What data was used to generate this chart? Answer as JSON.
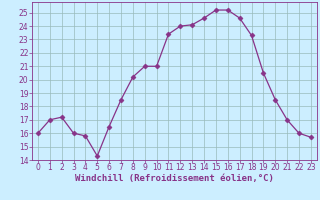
{
  "x": [
    0,
    1,
    2,
    3,
    4,
    5,
    6,
    7,
    8,
    9,
    10,
    11,
    12,
    13,
    14,
    15,
    16,
    17,
    18,
    19,
    20,
    21,
    22,
    23
  ],
  "y": [
    16.0,
    17.0,
    17.2,
    16.0,
    15.8,
    14.3,
    16.5,
    18.5,
    20.2,
    21.0,
    21.0,
    23.4,
    24.0,
    24.1,
    24.6,
    25.2,
    25.2,
    24.6,
    23.3,
    20.5,
    18.5,
    17.0,
    16.0,
    15.7
  ],
  "line_color": "#883388",
  "marker": "D",
  "marker_size": 2.5,
  "bg_color": "#cceeff",
  "grid_color": "#99bbbb",
  "xlabel": "Windchill (Refroidissement éolien,°C)",
  "ylim": [
    14,
    25.8
  ],
  "xlim": [
    -0.5,
    23.5
  ],
  "yticks": [
    14,
    15,
    16,
    17,
    18,
    19,
    20,
    21,
    22,
    23,
    24,
    25
  ],
  "xticks": [
    0,
    1,
    2,
    3,
    4,
    5,
    6,
    7,
    8,
    9,
    10,
    11,
    12,
    13,
    14,
    15,
    16,
    17,
    18,
    19,
    20,
    21,
    22,
    23
  ],
  "label_color": "#883388",
  "tick_color": "#883388",
  "axis_color": "#883388",
  "label_fontsize": 6.5,
  "tick_fontsize": 5.5
}
